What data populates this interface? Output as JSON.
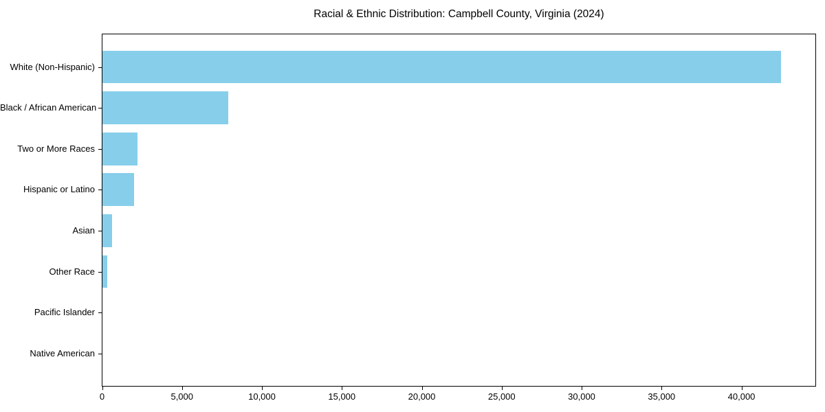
{
  "chart_data": {
    "type": "bar",
    "orientation": "horizontal",
    "title": "Racial & Ethnic Distribution: Campbell County, Virginia (2024)",
    "categories": [
      "White (Non-Hispanic)",
      "Black / African American",
      "Two or More Races",
      "Hispanic or Latino",
      "Asian",
      "Other Race",
      "Pacific Islander",
      "Native American"
    ],
    "values": [
      42450,
      7860,
      2190,
      1980,
      590,
      310,
      0,
      0
    ],
    "xlabel": "",
    "ylabel": "",
    "xlim": [
      0,
      44600
    ],
    "xticks": [
      0,
      5000,
      10000,
      15000,
      20000,
      25000,
      30000,
      35000,
      40000
    ],
    "xtick_labels": [
      "0",
      "5,000",
      "10,000",
      "15,000",
      "20,000",
      "25,000",
      "30,000",
      "35,000",
      "40,000"
    ],
    "bar_color": "#87CEEB",
    "axis_color": "#000000",
    "text_color": "#000000",
    "background_color": "#FFFFFF",
    "grid": false,
    "legend": null
  }
}
